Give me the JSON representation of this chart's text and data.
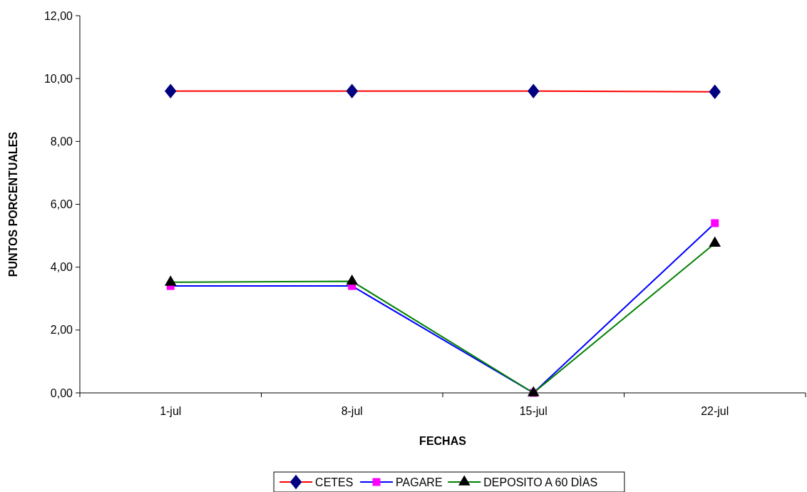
{
  "chart_data": {
    "type": "line",
    "xlabel": "FECHAS",
    "ylabel": "PUNTOS PORCENTUALES",
    "categories": [
      "1-jul",
      "8-jul",
      "15-jul",
      "22-jul"
    ],
    "series": [
      {
        "name": "CETES",
        "color": "#ff0000",
        "colors": [
          "#000080",
          "#000080",
          "#000080",
          "#000080"
        ],
        "marker": "diamond",
        "values": [
          9.6,
          9.6,
          9.6,
          9.58
        ]
      },
      {
        "name": "PAGARE",
        "color": "#0000ff",
        "colors": [
          "#ff00ff",
          "#ff00ff",
          "#ff00ff",
          "#ff00ff"
        ],
        "marker": "square",
        "values": [
          3.4,
          3.4,
          0,
          5.4
        ]
      },
      {
        "name": "DEPOSITO A 60 DÌAS",
        "color": "#008000",
        "colors": [
          "#000000",
          "#000000",
          "#000000",
          "#000000"
        ],
        "marker": "triangle",
        "values": [
          3.52,
          3.55,
          0,
          4.76
        ]
      }
    ],
    "ylim": [
      0,
      12
    ],
    "yticks": [
      {
        "value": 0,
        "label": "0,00"
      },
      {
        "value": 2,
        "label": "2,00"
      },
      {
        "value": 4,
        "label": "4,00"
      },
      {
        "value": 6,
        "label": "6,00"
      },
      {
        "value": 8,
        "label": "8,00"
      },
      {
        "value": 10,
        "label": "10,00"
      },
      {
        "value": 12,
        "label": "12,00"
      }
    ],
    "grid": false,
    "legend": "bottom",
    "line_style": "solid"
  }
}
